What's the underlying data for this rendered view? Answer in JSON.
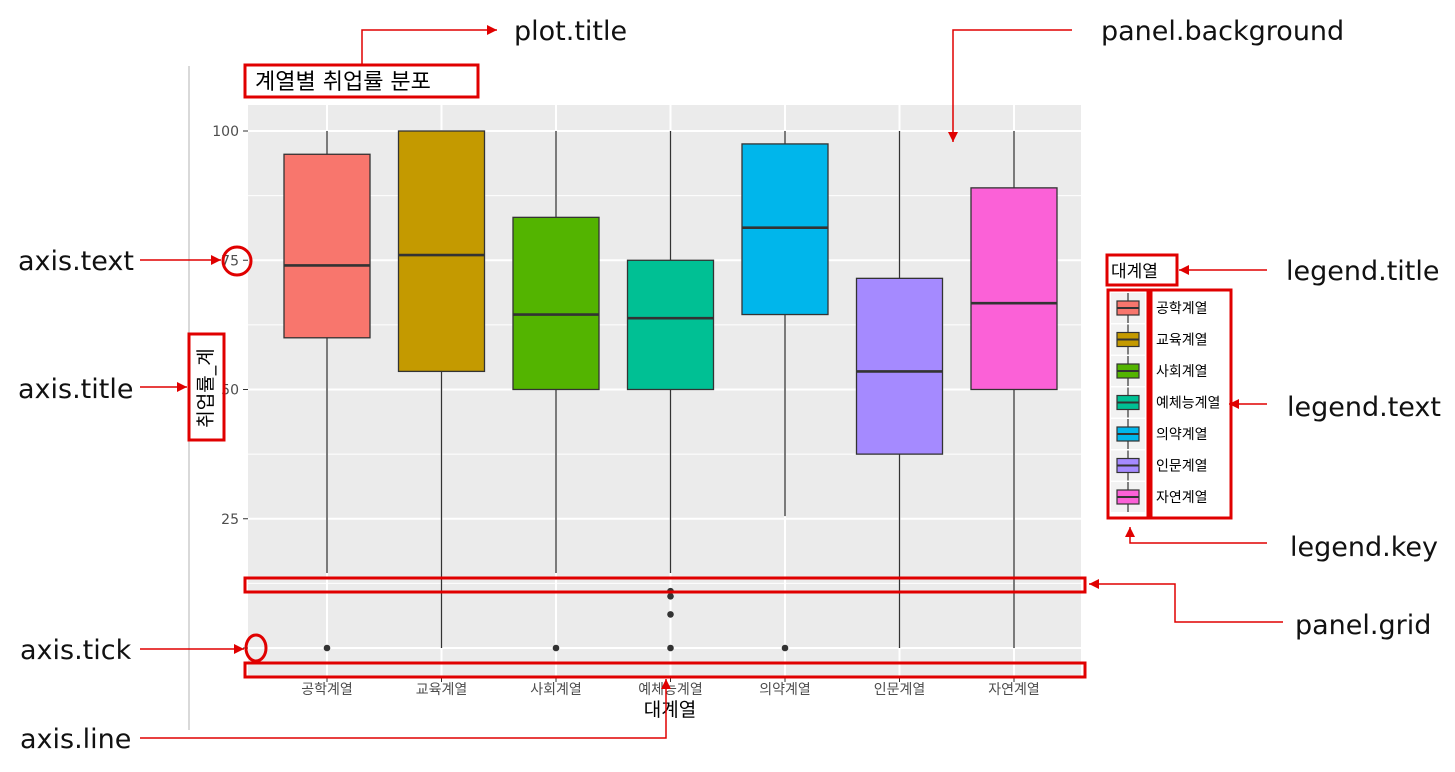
{
  "callouts": {
    "plot_title": "plot.title",
    "panel_background": "panel.background",
    "axis_text": "axis.text",
    "legend_title": "legend.title",
    "axis_title": "axis.title",
    "legend_text": "legend.text",
    "legend_key": "legend.key",
    "panel_grid": "panel.grid",
    "axis_tick": "axis.tick",
    "axis_line": "axis.line"
  },
  "colors": {
    "annotation": "#e00000",
    "panel": "#ebebeb",
    "grid": "#ffffff"
  },
  "chart_data": {
    "type": "boxplot",
    "title": "계열별 취업률 분포",
    "xlabel": "대계열",
    "ylabel": "취업률_계",
    "ylim": [
      -2,
      105
    ],
    "yticks": [
      25,
      50,
      75,
      100
    ],
    "grid": true,
    "legend_title": "대계열",
    "legend_position": "right",
    "categories": [
      "공학계열",
      "교육계열",
      "사회계열",
      "예체능계열",
      "의약계열",
      "인문계열",
      "자연계열"
    ],
    "series": [
      {
        "name": "공학계열",
        "color": "#f8766d",
        "whisker_low": 14.5,
        "q1": 60,
        "median": 74,
        "q3": 95.5,
        "whisker_high": 100,
        "outliers": [
          0
        ]
      },
      {
        "name": "교육계열",
        "color": "#c49a00",
        "whisker_low": 0,
        "q1": 53.5,
        "median": 76,
        "q3": 100,
        "whisker_high": 100,
        "outliers": []
      },
      {
        "name": "사회계열",
        "color": "#53b400",
        "whisker_low": 14.5,
        "q1": 50,
        "median": 64.5,
        "q3": 83.3,
        "whisker_high": 100,
        "outliers": [
          0
        ]
      },
      {
        "name": "예체능계열",
        "color": "#00c094",
        "whisker_low": 14.5,
        "q1": 50,
        "median": 63.8,
        "q3": 75,
        "whisker_high": 100,
        "outliers": [
          0,
          6.5,
          10,
          11
        ]
      },
      {
        "name": "의약계열",
        "color": "#00b6eb",
        "whisker_low": 25.5,
        "q1": 64.5,
        "median": 81.3,
        "q3": 97.5,
        "whisker_high": 100,
        "outliers": [
          0
        ]
      },
      {
        "name": "인문계열",
        "color": "#a58aff",
        "whisker_low": 0,
        "q1": 37.5,
        "median": 53.5,
        "q3": 71.5,
        "whisker_high": 100,
        "outliers": []
      },
      {
        "name": "자연계열",
        "color": "#fb61d7",
        "whisker_low": 0,
        "q1": 50,
        "median": 66.7,
        "q3": 89,
        "whisker_high": 100,
        "outliers": []
      }
    ]
  }
}
